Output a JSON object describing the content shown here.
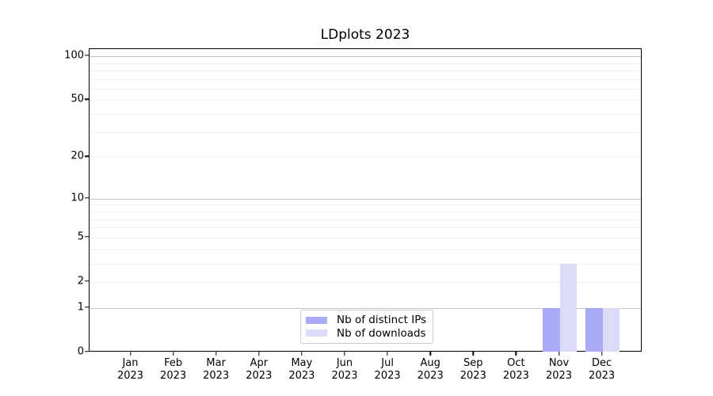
{
  "title": "LDplots 2023",
  "colors": {
    "bar_distinct_ips": "#aaaaf8",
    "bar_downloads": "#dcdcf8",
    "grid_major": "#c4c4c4",
    "grid_minor": "#efefef",
    "axis": "#000000",
    "legend_border": "#cccccc",
    "text": "#000000"
  },
  "legend": {
    "items": [
      {
        "label": "Nb of distinct IPs",
        "swatch": "bar-swatch-distinct-ips"
      },
      {
        "label": "Nb of downloads",
        "swatch": "bar-swatch-downloads"
      }
    ]
  },
  "chart_data": {
    "type": "bar",
    "title": "LDplots 2023",
    "categories": [
      "Jan 2023",
      "Feb 2023",
      "Mar 2023",
      "Apr 2023",
      "May 2023",
      "Jun 2023",
      "Jul 2023",
      "Aug 2023",
      "Sep 2023",
      "Oct 2023",
      "Nov 2023",
      "Dec 2023"
    ],
    "series": [
      {
        "name": "Nb of distinct IPs",
        "color": "#aaaaf8",
        "values": [
          0,
          0,
          0,
          0,
          0,
          0,
          0,
          0,
          0,
          0,
          1,
          1
        ]
      },
      {
        "name": "Nb of downloads",
        "color": "#dcdcf8",
        "values": [
          0,
          0,
          0,
          0,
          0,
          0,
          0,
          0,
          0,
          0,
          3,
          1
        ]
      }
    ],
    "xlabel": "",
    "ylabel": "",
    "yscale": "log1p",
    "ylim": [
      0,
      112
    ],
    "yticks_labeled": [
      0,
      1,
      2,
      5,
      10,
      20,
      50,
      100
    ],
    "gridlines_major": [
      1,
      10,
      100
    ],
    "gridlines_minor": [
      2,
      3,
      4,
      5,
      6,
      7,
      8,
      9,
      20,
      30,
      40,
      50,
      60,
      70,
      80,
      90
    ],
    "grid": "on",
    "legend_position": "lower center inside plot"
  }
}
